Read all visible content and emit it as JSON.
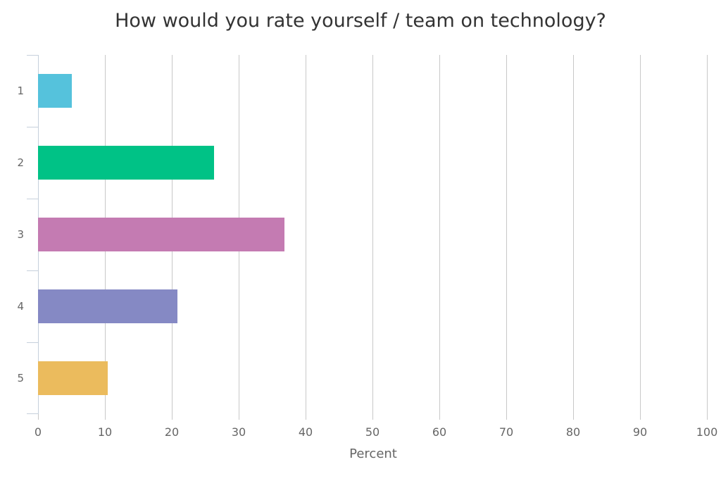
{
  "chart_data": {
    "type": "bar",
    "orientation": "horizontal",
    "title": "How would you rate yourself / team on technology?",
    "xlabel": "Percent",
    "ylabel": "",
    "xlim": [
      0,
      100
    ],
    "x_ticks": [
      0,
      10,
      20,
      30,
      40,
      50,
      60,
      70,
      80,
      90,
      100
    ],
    "categories": [
      "1",
      "2",
      "3",
      "4",
      "5"
    ],
    "values": [
      5.0,
      26.3,
      36.8,
      20.8,
      10.4
    ],
    "colors": [
      "#55c2dc",
      "#00c286",
      "#c47bb2",
      "#8589c4",
      "#ebbb5d"
    ],
    "grid": "vertical",
    "legend": "none"
  },
  "labels": {
    "title": "How would you rate yourself / team on technology?",
    "xlabel": "Percent"
  }
}
